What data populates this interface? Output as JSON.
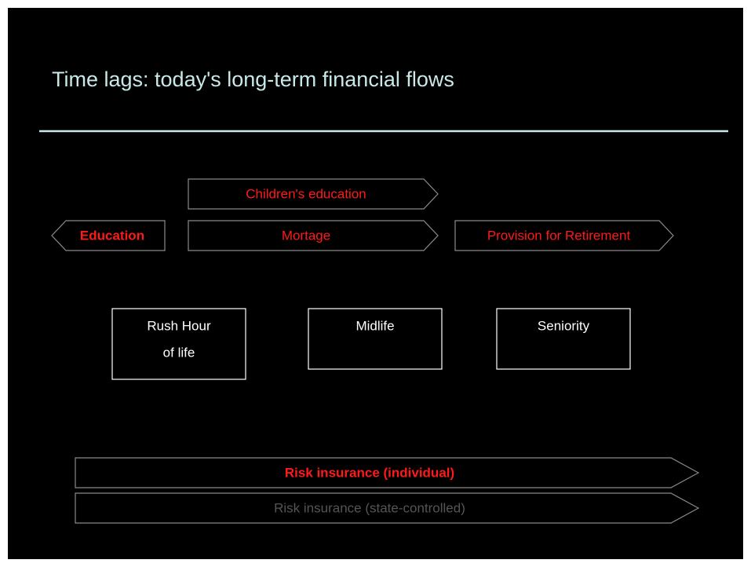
{
  "title": "Time lags: today's long-term financial flows",
  "flows": [
    {
      "label": "Children's education"
    },
    {
      "label": "Education"
    },
    {
      "label": "Mortage"
    },
    {
      "label": "Provision for Retirement"
    },
    {
      "label": "Risk insurance (individual)"
    },
    {
      "label": "Risk insurance (state-controlled)"
    }
  ],
  "phases": [
    {
      "lines": [
        "Rush Hour",
        "of life"
      ]
    },
    {
      "lines": [
        "Midlife"
      ]
    },
    {
      "lines": [
        "Seniority"
      ]
    }
  ]
}
